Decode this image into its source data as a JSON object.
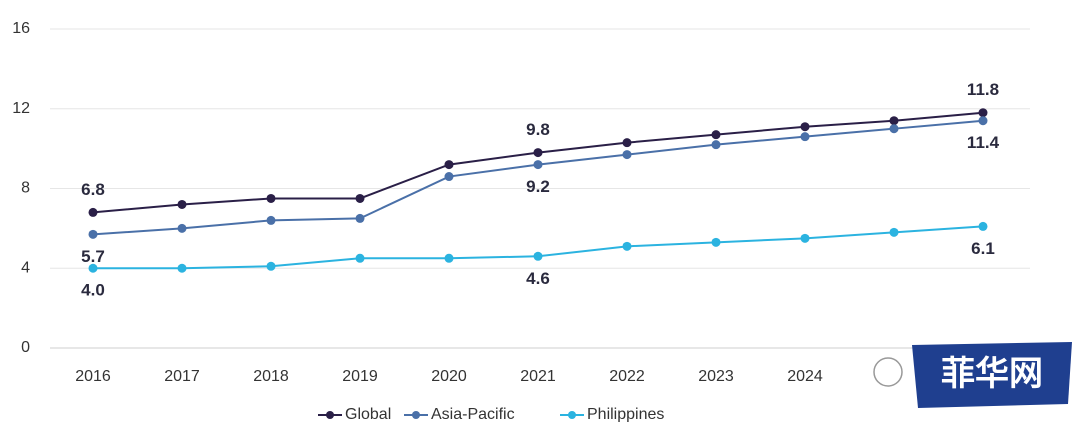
{
  "chart_data": {
    "type": "line",
    "categories": [
      "2016",
      "2017",
      "2018",
      "2019",
      "2020",
      "2021",
      "2022",
      "2023",
      "2024",
      null,
      null
    ],
    "series": [
      {
        "name": "Global",
        "color": "#2a1f47",
        "values": [
          6.8,
          7.2,
          7.5,
          7.5,
          9.2,
          9.8,
          10.3,
          10.7,
          11.1,
          11.4,
          11.8
        ],
        "value_labels": [
          "6.8",
          null,
          null,
          null,
          null,
          "9.8",
          null,
          null,
          null,
          null,
          "11.8"
        ]
      },
      {
        "name": "Asia-Pacific",
        "color": "#4a70a8",
        "values": [
          5.7,
          6.0,
          6.4,
          6.5,
          8.6,
          9.2,
          9.7,
          10.2,
          10.6,
          11.0,
          11.4
        ],
        "value_labels": [
          "5.7",
          null,
          null,
          null,
          null,
          "9.2",
          null,
          null,
          null,
          null,
          "11.4"
        ]
      },
      {
        "name": "Philippines",
        "color": "#2bb3e0",
        "values": [
          4.0,
          4.0,
          4.1,
          4.5,
          4.5,
          4.6,
          5.1,
          5.3,
          5.5,
          5.8,
          6.1
        ],
        "value_labels": [
          "4.0",
          null,
          null,
          null,
          null,
          "4.6",
          null,
          null,
          null,
          null,
          "6.1"
        ]
      }
    ],
    "ylim": [
      0,
      16
    ],
    "yticks": [
      0,
      4,
      8,
      12,
      16
    ],
    "grid": true,
    "legend": "bottom",
    "watermark": "菲华网"
  }
}
